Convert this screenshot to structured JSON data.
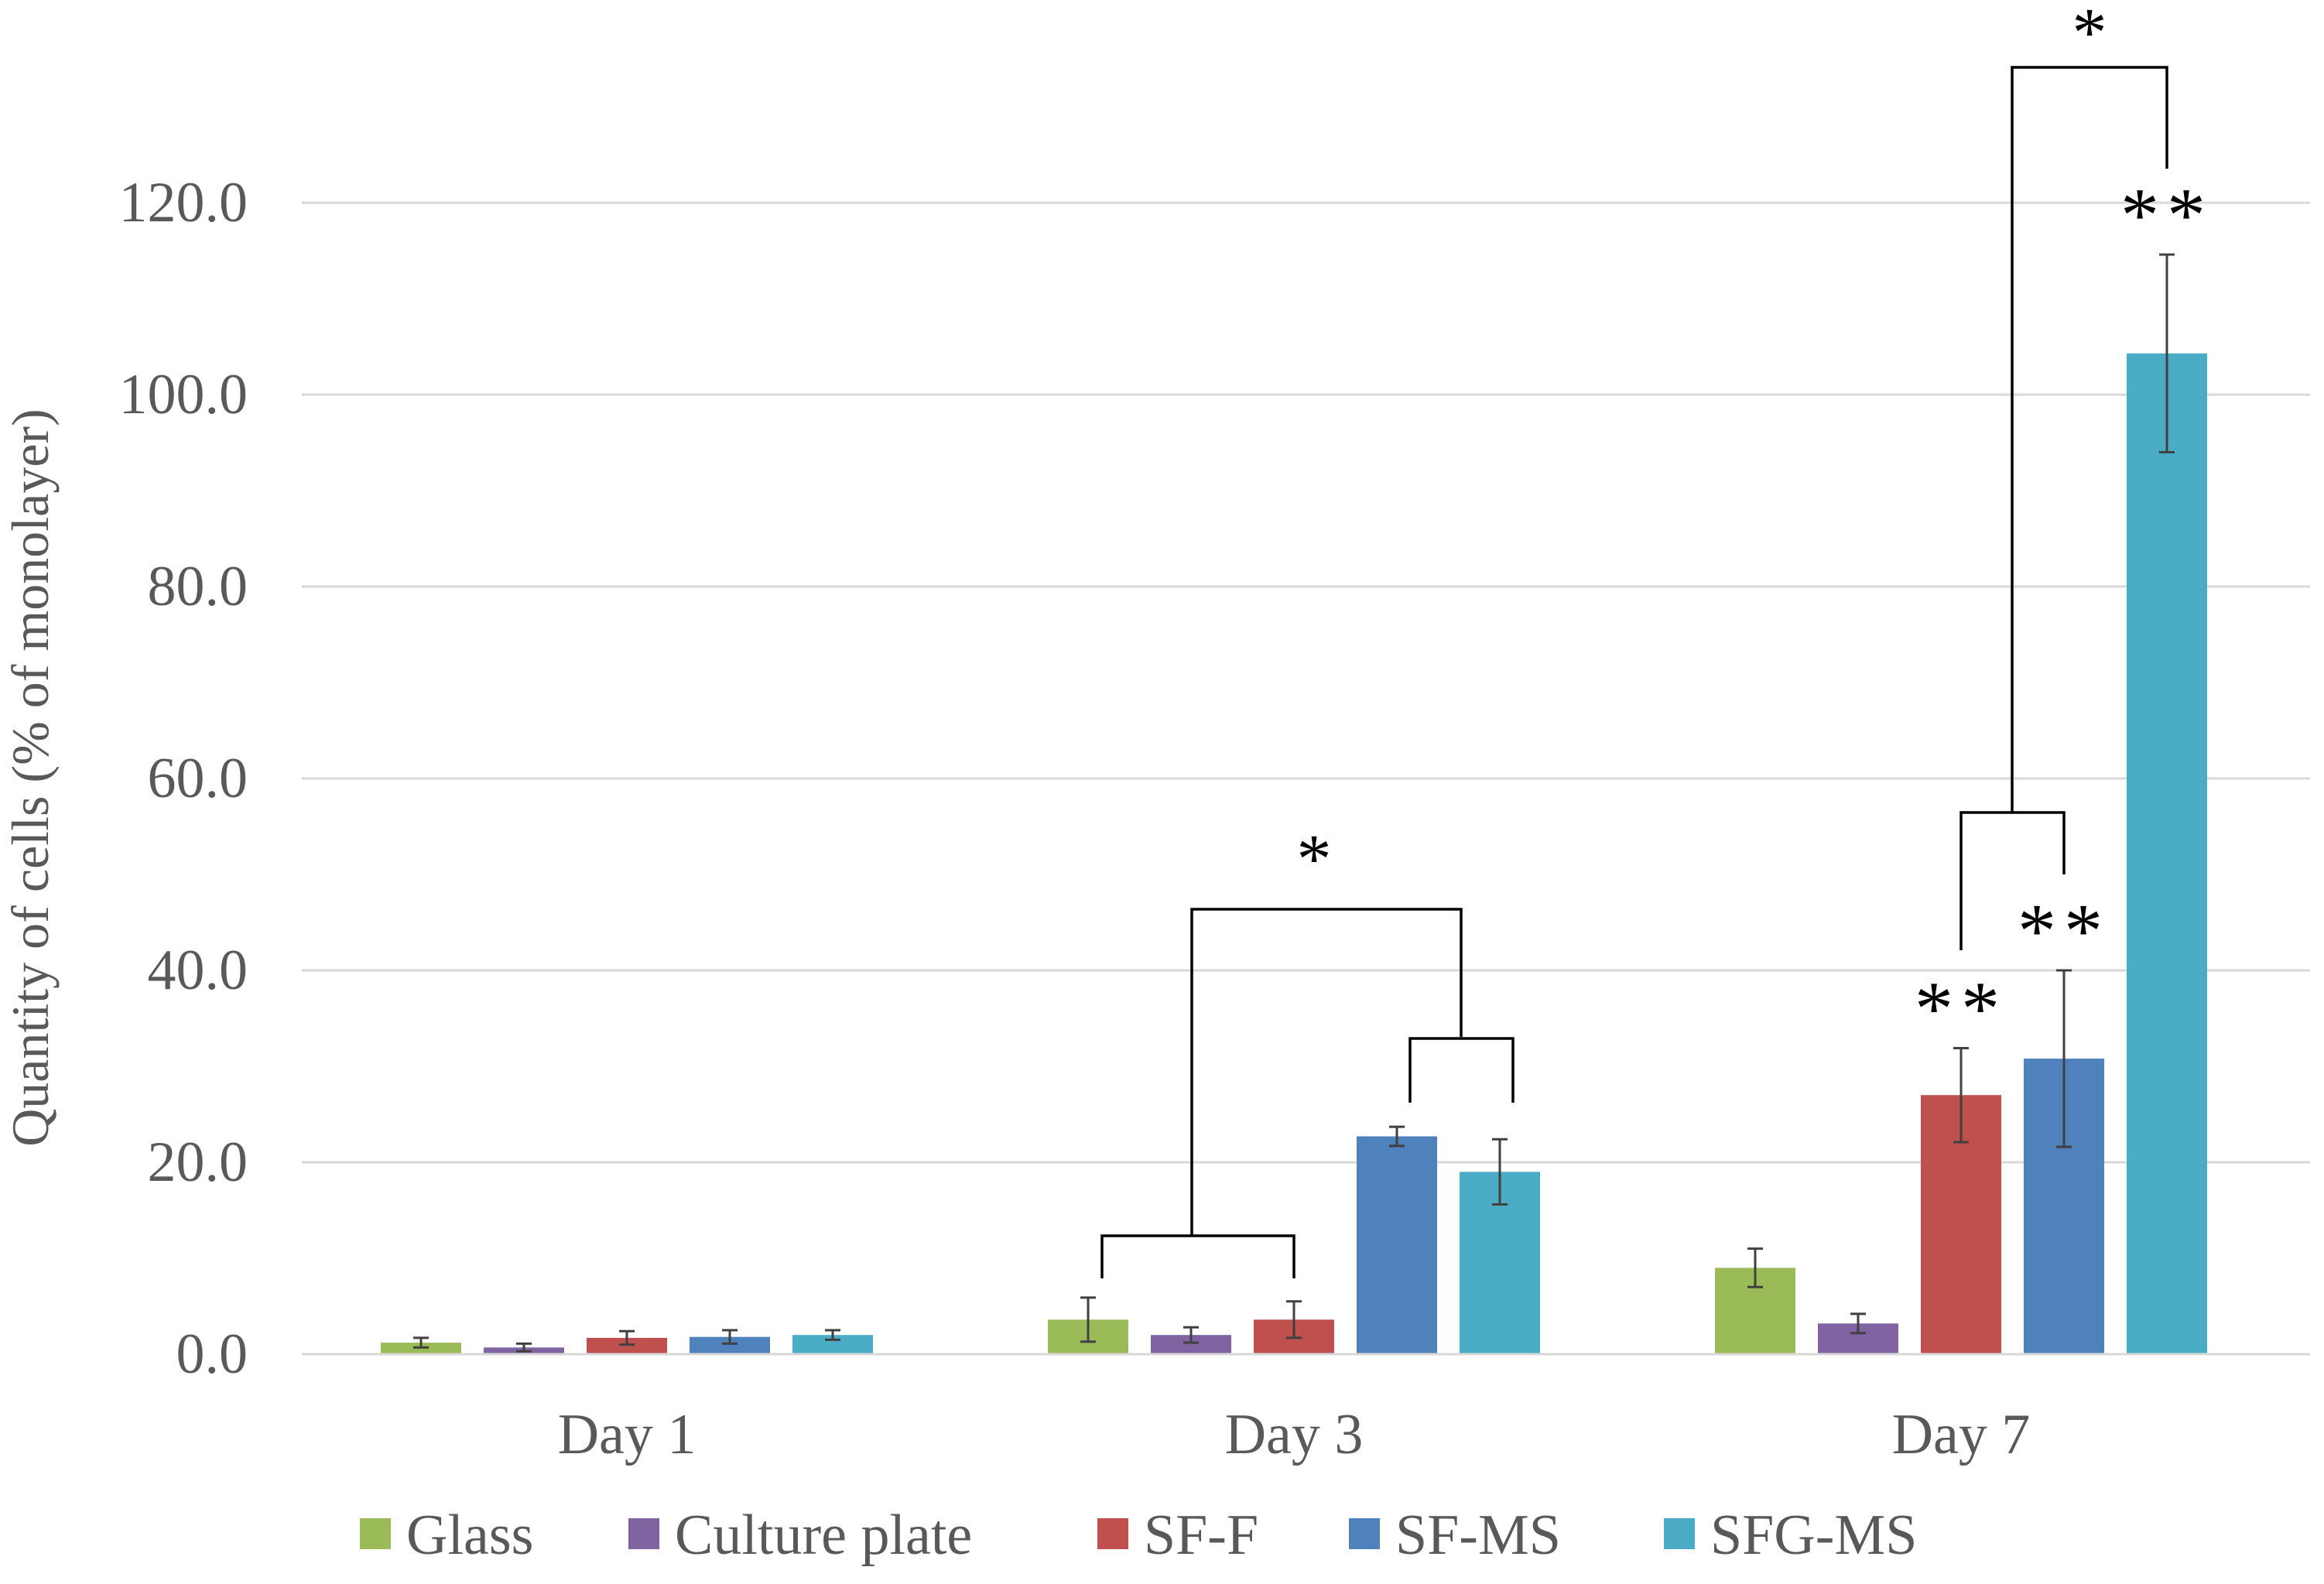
{
  "chart_data": {
    "type": "bar",
    "title": "",
    "xlabel": "",
    "ylabel": "Quantity of cells (% of monolayer)",
    "ylim": [
      0,
      120
    ],
    "yticks": [
      "0.0",
      "20.0",
      "40.0",
      "60.0",
      "80.0",
      "100.0",
      "120.0"
    ],
    "grid": true,
    "legend_position": "bottom",
    "categories": [
      "Day 1",
      "Day 3",
      "Day 7"
    ],
    "series": [
      {
        "name": "Glass",
        "color": "#9bbb59",
        "values": [
          1.2,
          3.6,
          9.0
        ],
        "errors": [
          0.5,
          2.3,
          2.0
        ]
      },
      {
        "name": "Culture plate",
        "color": "#8064a2",
        "values": [
          0.7,
          2.0,
          3.2
        ],
        "errors": [
          0.4,
          0.8,
          1.0
        ]
      },
      {
        "name": "SF-F",
        "color": "#c0504d",
        "values": [
          1.7,
          3.6,
          27.0
        ],
        "errors": [
          0.7,
          1.9,
          4.9
        ]
      },
      {
        "name": "SF-MS",
        "color": "#4f81bd",
        "values": [
          1.8,
          22.7,
          30.8
        ],
        "errors": [
          0.7,
          1.0,
          9.2
        ]
      },
      {
        "name": "SFG-MS",
        "color": "#4bacc6",
        "values": [
          2.0,
          19.0,
          104.3
        ],
        "errors": [
          0.5,
          3.4,
          10.3
        ]
      }
    ],
    "annotations": {
      "single_star": "*",
      "double_star": "**",
      "double_star_bars": [
        {
          "category": 2,
          "series": 2
        },
        {
          "category": 2,
          "series": 3
        },
        {
          "category": 2,
          "series": 4
        }
      ]
    }
  }
}
